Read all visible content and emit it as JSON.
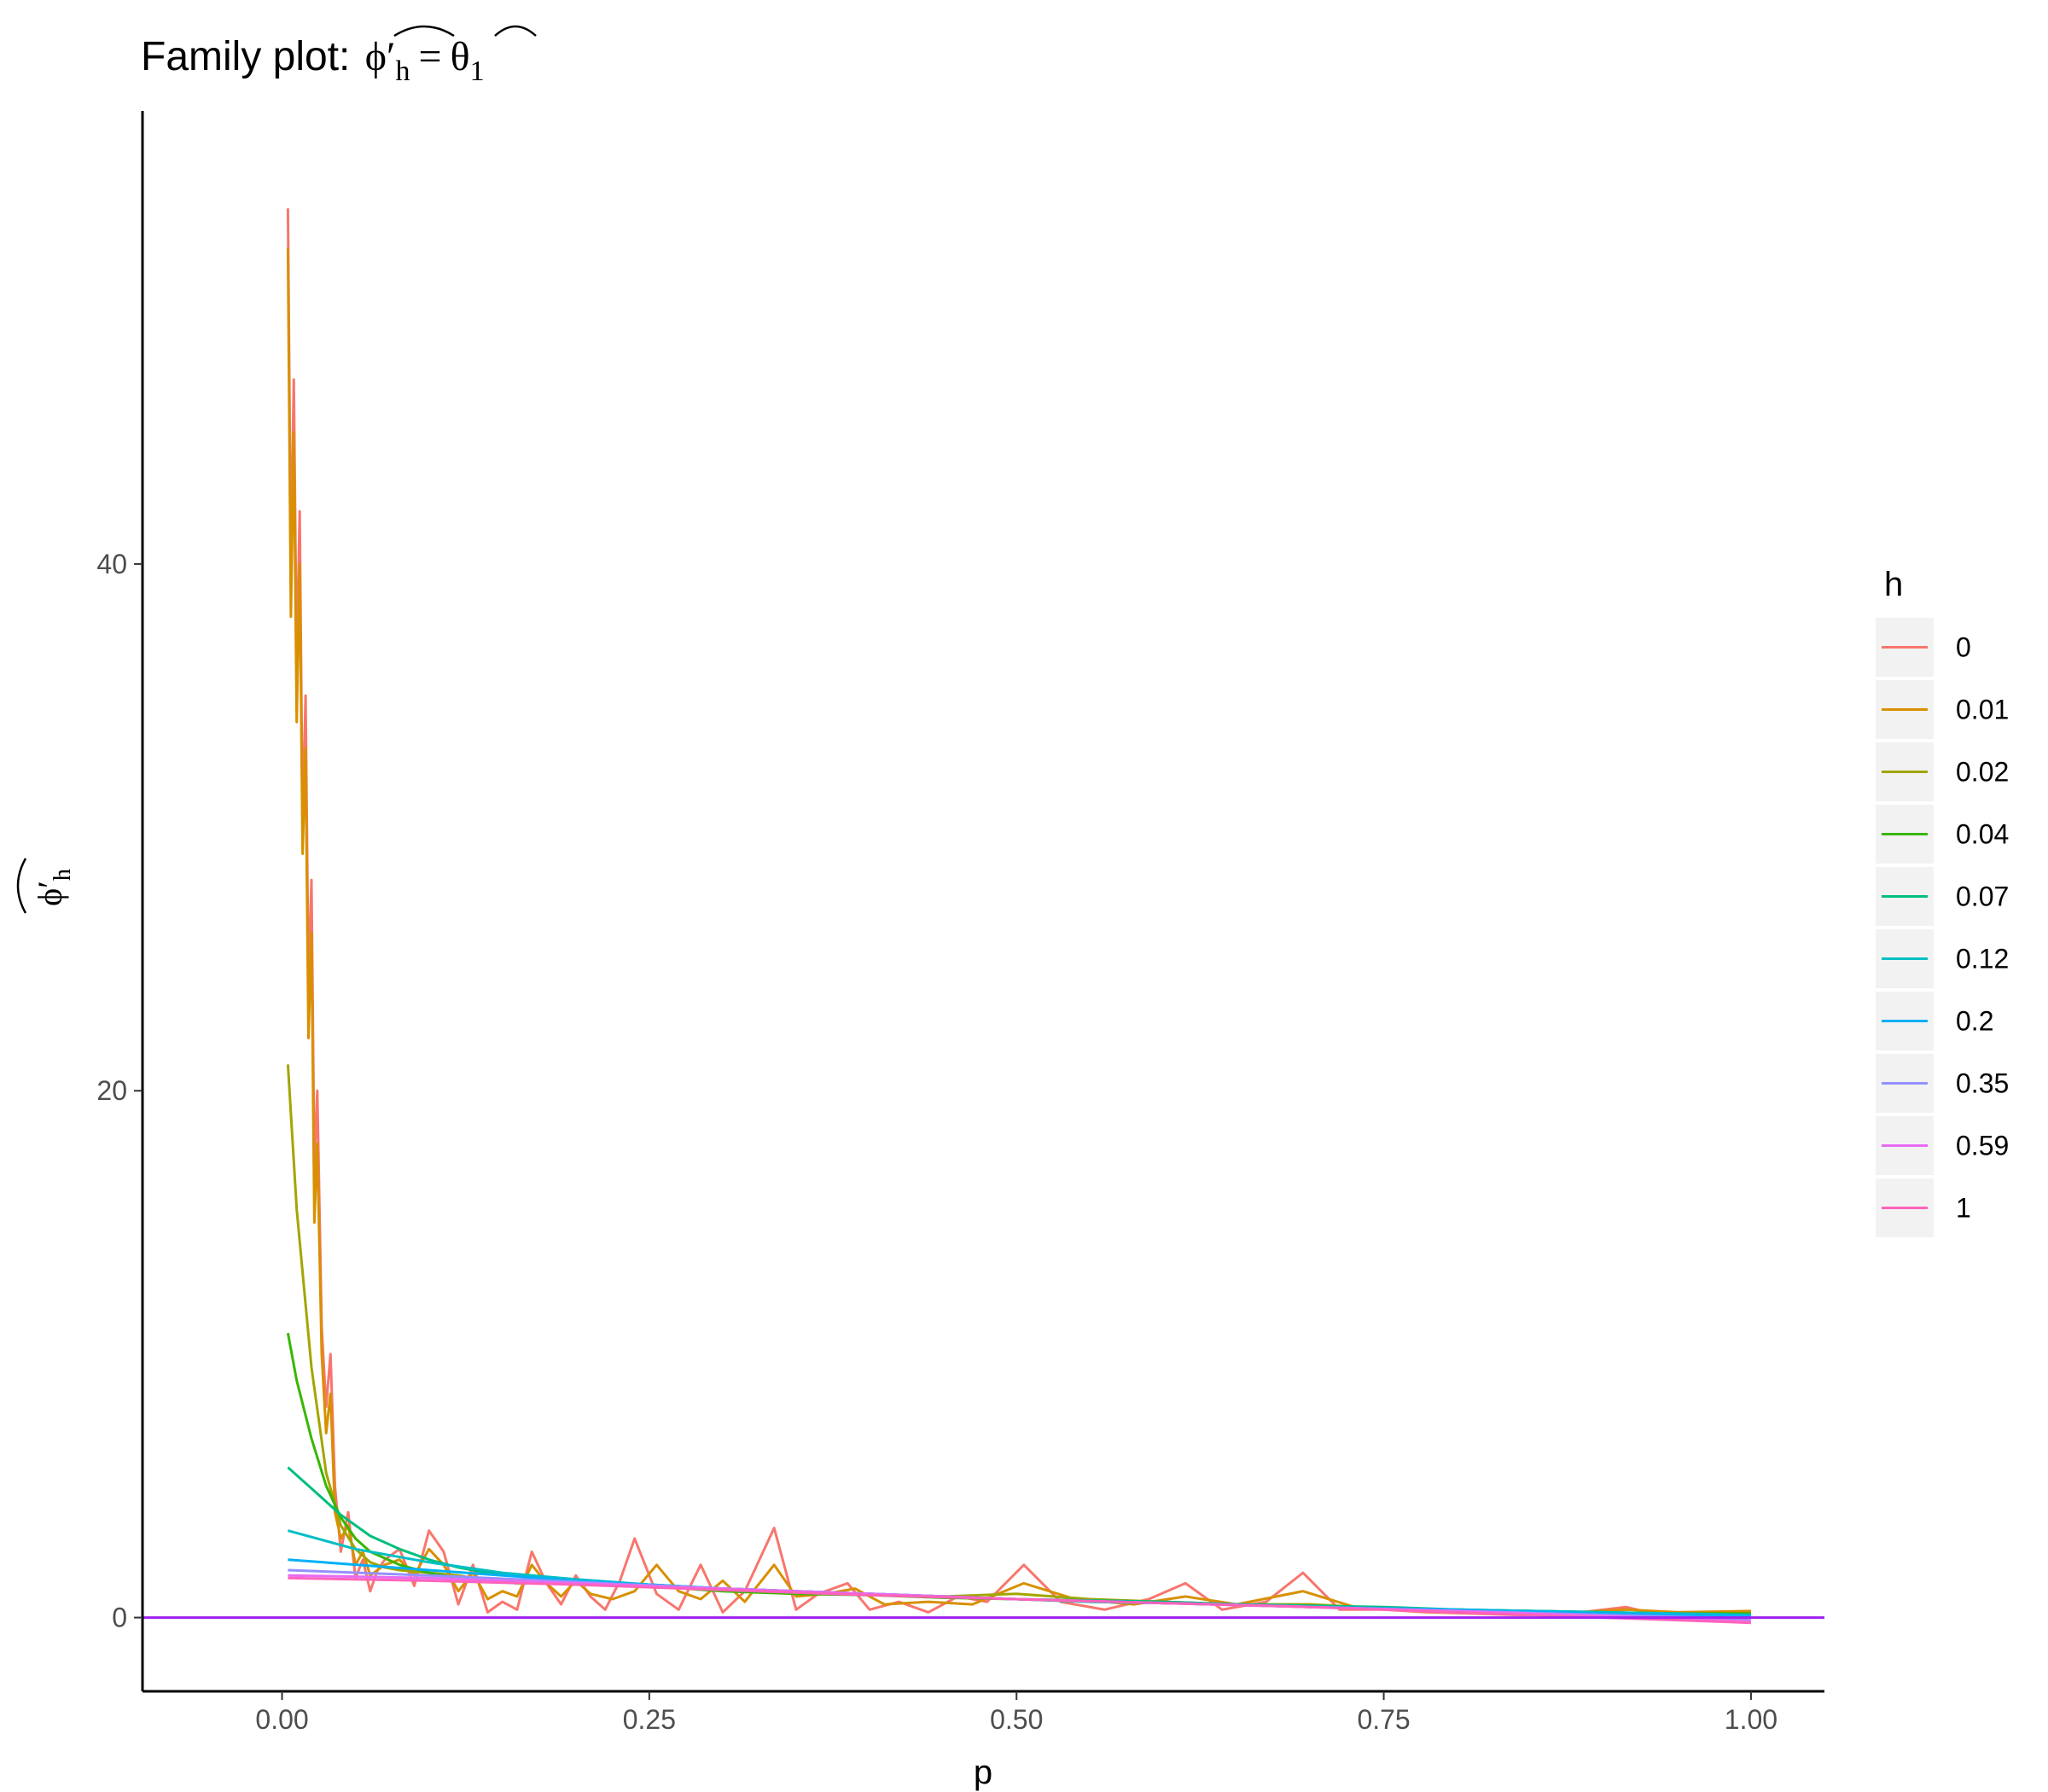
{
  "chart_data": {
    "type": "line",
    "title": "Family plot: ",
    "title_math": {
      "lhs_base": "ϕ′",
      "lhs_sub": "h",
      "eq": "=",
      "rhs_base": "θ",
      "rhs_sub": "1"
    },
    "xlabel": "p",
    "ylabel": {
      "base": "ϕ′",
      "sub": "h"
    },
    "xlim": [
      -0.095,
      1.05
    ],
    "ylim": [
      -2.8,
      57.2
    ],
    "xticks": [
      0.0,
      0.25,
      0.5,
      0.75,
      1.0
    ],
    "xtick_labels": [
      "0.00",
      "0.25",
      "0.50",
      "0.75",
      "1.00"
    ],
    "yticks": [
      0,
      20,
      40
    ],
    "ytick_labels": [
      "0",
      "20",
      "40"
    ],
    "grid": false,
    "hline": {
      "y": 0,
      "color": "#a020f0"
    },
    "legend": {
      "title": "h",
      "placement": "right"
    },
    "series": [
      {
        "name": "0",
        "color": "#f8766d",
        "x": [
          0.004,
          0.006,
          0.008,
          0.01,
          0.012,
          0.014,
          0.016,
          0.018,
          0.02,
          0.022,
          0.024,
          0.027,
          0.03,
          0.033,
          0.036,
          0.04,
          0.045,
          0.05,
          0.055,
          0.06,
          0.065,
          0.07,
          0.08,
          0.09,
          0.1,
          0.11,
          0.12,
          0.13,
          0.14,
          0.15,
          0.16,
          0.17,
          0.18,
          0.19,
          0.2,
          0.21,
          0.22,
          0.23,
          0.24,
          0.255,
          0.27,
          0.285,
          0.3,
          0.315,
          0.335,
          0.35,
          0.365,
          0.385,
          0.4,
          0.42,
          0.44,
          0.46,
          0.48,
          0.505,
          0.53,
          0.56,
          0.59,
          0.615,
          0.64,
          0.67,
          0.695,
          0.72,
          0.75,
          0.78,
          0.81,
          0.84,
          0.87,
          0.9,
          0.915,
          0.93,
          0.96,
          0.98,
          1.0
        ],
        "y": [
          53.5,
          40.0,
          47.0,
          36.0,
          42.0,
          30.0,
          35.0,
          24.0,
          28.0,
          17.0,
          20.0,
          11.0,
          8.0,
          10.0,
          5.0,
          2.5,
          4.0,
          1.5,
          2.2,
          1.0,
          1.8,
          2.2,
          2.6,
          1.2,
          3.3,
          2.5,
          0.5,
          2.0,
          0.2,
          0.6,
          0.3,
          2.5,
          1.3,
          0.5,
          1.6,
          0.8,
          0.3,
          1.4,
          3.0,
          0.9,
          0.3,
          2.0,
          0.2,
          1.0,
          3.4,
          0.3,
          0.9,
          1.3,
          0.3,
          0.6,
          0.2,
          0.8,
          0.6,
          2.0,
          0.6,
          0.3,
          0.7,
          1.3,
          0.3,
          0.6,
          1.7,
          0.3,
          0.3,
          0.2,
          0.15,
          0.1,
          0.1,
          0.3,
          0.4,
          0.2,
          0.2,
          0.1,
          0.2
        ]
      },
      {
        "name": "0.01",
        "color": "#d89000",
        "x": [
          0.004,
          0.006,
          0.008,
          0.01,
          0.012,
          0.014,
          0.016,
          0.018,
          0.02,
          0.022,
          0.024,
          0.027,
          0.03,
          0.033,
          0.036,
          0.04,
          0.045,
          0.05,
          0.055,
          0.06,
          0.07,
          0.08,
          0.09,
          0.1,
          0.11,
          0.12,
          0.13,
          0.14,
          0.15,
          0.16,
          0.17,
          0.18,
          0.19,
          0.2,
          0.21,
          0.225,
          0.24,
          0.255,
          0.27,
          0.285,
          0.3,
          0.315,
          0.335,
          0.35,
          0.37,
          0.39,
          0.41,
          0.44,
          0.47,
          0.505,
          0.54,
          0.58,
          0.615,
          0.65,
          0.695,
          0.73,
          0.78,
          0.83,
          0.88,
          0.915,
          0.95,
          1.0
        ],
        "y": [
          52.0,
          38.0,
          45.0,
          34.0,
          40.0,
          29.0,
          33.0,
          22.0,
          26.0,
          15.0,
          18.0,
          10.0,
          7.0,
          8.5,
          4.0,
          3.0,
          3.5,
          2.0,
          2.5,
          1.6,
          2.0,
          2.2,
          1.6,
          2.6,
          2.0,
          1.0,
          1.7,
          0.7,
          1.0,
          0.8,
          2.0,
          1.3,
          0.8,
          1.4,
          0.9,
          0.7,
          1.0,
          2.0,
          1.0,
          0.7,
          1.4,
          0.6,
          2.0,
          0.8,
          0.9,
          1.1,
          0.5,
          0.6,
          0.5,
          1.3,
          0.7,
          0.5,
          0.8,
          0.5,
          1.0,
          0.4,
          0.3,
          0.2,
          0.2,
          0.3,
          0.2,
          0.25
        ]
      },
      {
        "name": "0.02",
        "color": "#a3a500",
        "x": [
          0.004,
          0.01,
          0.02,
          0.03,
          0.04,
          0.05,
          0.06,
          0.07,
          0.08,
          0.1,
          0.12,
          0.14,
          0.16,
          0.18,
          0.2,
          0.25,
          0.3,
          0.35,
          0.4,
          0.45,
          0.5,
          0.55,
          0.6,
          0.65,
          0.7,
          0.75,
          0.8,
          0.85,
          0.9,
          0.95,
          1.0
        ],
        "y": [
          21.0,
          15.5,
          9.5,
          5.5,
          3.5,
          2.6,
          2.1,
          1.9,
          1.8,
          1.7,
          1.6,
          1.4,
          1.3,
          1.4,
          1.3,
          1.2,
          1.1,
          1.0,
          0.9,
          0.8,
          0.9,
          0.7,
          0.6,
          0.5,
          0.5,
          0.35,
          0.25,
          0.2,
          0.15,
          0.15,
          0.15
        ]
      },
      {
        "name": "0.04",
        "color": "#39b600",
        "x": [
          0.004,
          0.01,
          0.02,
          0.03,
          0.04,
          0.05,
          0.06,
          0.08,
          0.1,
          0.12,
          0.14,
          0.16,
          0.18,
          0.2,
          0.25,
          0.3,
          0.35,
          0.4,
          0.45,
          0.5,
          0.55,
          0.6,
          0.65,
          0.7,
          0.75,
          0.8,
          0.85,
          0.9,
          0.95,
          1.0
        ],
        "y": [
          10.8,
          9.0,
          6.8,
          5.0,
          3.8,
          3.0,
          2.5,
          2.0,
          1.7,
          1.5,
          1.4,
          1.3,
          1.3,
          1.25,
          1.2,
          1.0,
          0.9,
          0.85,
          0.75,
          0.7,
          0.6,
          0.55,
          0.5,
          0.45,
          0.35,
          0.3,
          0.25,
          0.2,
          0.15,
          0.15
        ]
      },
      {
        "name": "0.07",
        "color": "#00bf7d",
        "x": [
          0.004,
          0.02,
          0.04,
          0.06,
          0.08,
          0.1,
          0.12,
          0.14,
          0.16,
          0.18,
          0.2,
          0.25,
          0.3,
          0.35,
          0.4,
          0.45,
          0.5,
          0.55,
          0.6,
          0.65,
          0.7,
          0.75,
          0.8,
          0.85,
          0.9,
          0.95,
          1.0
        ],
        "y": [
          5.7,
          4.9,
          3.9,
          3.1,
          2.6,
          2.2,
          1.9,
          1.7,
          1.6,
          1.5,
          1.4,
          1.25,
          1.1,
          1.0,
          0.9,
          0.8,
          0.7,
          0.65,
          0.6,
          0.5,
          0.45,
          0.4,
          0.3,
          0.25,
          0.2,
          0.15,
          0.1
        ]
      },
      {
        "name": "0.12",
        "color": "#00bfc4",
        "x": [
          0.004,
          0.05,
          0.1,
          0.15,
          0.2,
          0.25,
          0.3,
          0.35,
          0.4,
          0.45,
          0.5,
          0.55,
          0.6,
          0.65,
          0.7,
          0.75,
          0.8,
          0.85,
          0.9,
          0.95,
          1.0
        ],
        "y": [
          3.3,
          2.6,
          2.1,
          1.7,
          1.45,
          1.25,
          1.1,
          1.0,
          0.9,
          0.8,
          0.7,
          0.6,
          0.55,
          0.5,
          0.42,
          0.35,
          0.3,
          0.25,
          0.2,
          0.15,
          0.1
        ]
      },
      {
        "name": "0.2",
        "color": "#00b0f6",
        "x": [
          0.004,
          0.1,
          0.2,
          0.3,
          0.4,
          0.5,
          0.6,
          0.7,
          0.8,
          0.9,
          1.0
        ],
        "y": [
          2.2,
          1.8,
          1.4,
          1.1,
          0.9,
          0.7,
          0.55,
          0.4,
          0.3,
          0.15,
          0.05
        ]
      },
      {
        "name": "0.35",
        "color": "#9590ff",
        "x": [
          0.004,
          0.1,
          0.2,
          0.3,
          0.4,
          0.5,
          0.6,
          0.7,
          0.8,
          0.9,
          1.0
        ],
        "y": [
          1.8,
          1.6,
          1.35,
          1.1,
          0.9,
          0.7,
          0.55,
          0.4,
          0.25,
          0.1,
          -0.05
        ]
      },
      {
        "name": "0.59",
        "color": "#e76bf3",
        "x": [
          0.004,
          0.1,
          0.2,
          0.3,
          0.4,
          0.5,
          0.6,
          0.7,
          0.8,
          0.9,
          1.0
        ],
        "y": [
          1.6,
          1.5,
          1.3,
          1.1,
          0.9,
          0.7,
          0.55,
          0.4,
          0.25,
          0.05,
          -0.15
        ]
      },
      {
        "name": "1",
        "color": "#ff62bc",
        "x": [
          0.004,
          0.1,
          0.2,
          0.3,
          0.4,
          0.5,
          0.6,
          0.7,
          0.8,
          0.9,
          1.0
        ],
        "y": [
          1.5,
          1.4,
          1.25,
          1.05,
          0.85,
          0.7,
          0.55,
          0.4,
          0.2,
          0.0,
          -0.2
        ]
      }
    ]
  }
}
